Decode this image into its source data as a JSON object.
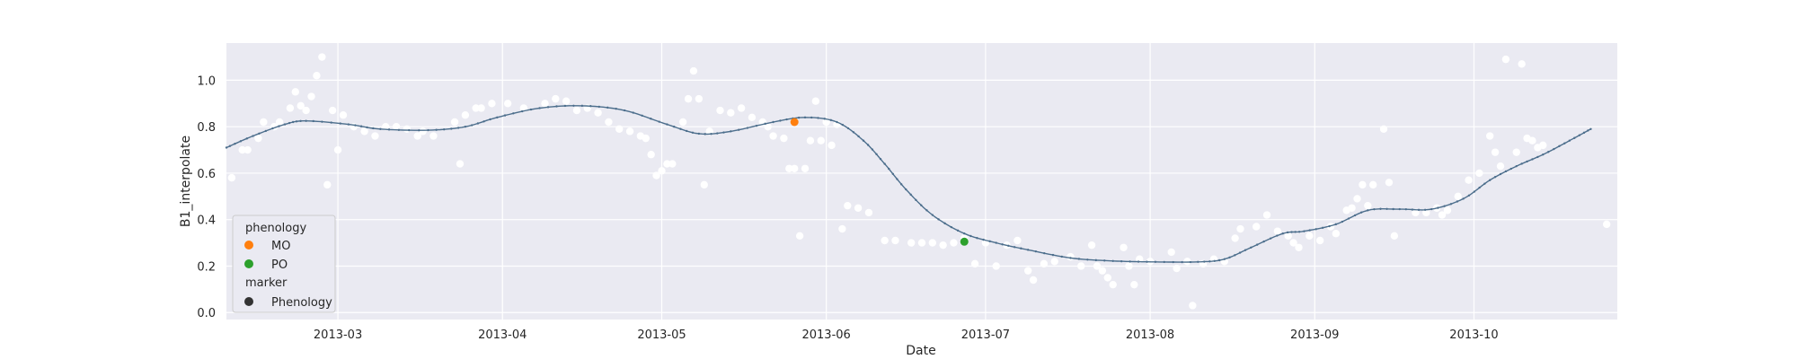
{
  "chart_data": {
    "type": "scatter",
    "title": "",
    "xlabel": "Date",
    "ylabel": "B1_interpolate",
    "x_ticks": [
      "2013-03",
      "2013-04",
      "2013-05",
      "2013-06",
      "2013-07",
      "2013-08",
      "2013-09",
      "2013-10"
    ],
    "x_tick_days": [
      28,
      59,
      89,
      120,
      150,
      181,
      212,
      242
    ],
    "x_range_days": [
      7,
      269
    ],
    "y_ticks": [
      "0.0",
      "0.2",
      "0.4",
      "0.6",
      "0.8",
      "1.0"
    ],
    "ylim": [
      -0.03,
      1.16
    ],
    "grid": true,
    "colors": {
      "background": "#eaeaf2",
      "grid": "#ffffff",
      "curve": "#4c6e8c",
      "raw_points": "#ffffff",
      "MO": "#ff7f0e",
      "PO": "#2ca02c",
      "marker": "#333333"
    },
    "curve": {
      "name": "B1_interpolate",
      "x_days": [
        7,
        12,
        18,
        22,
        30,
        36,
        45,
        52,
        58,
        66,
        74,
        82,
        90,
        96,
        102,
        110,
        116,
        122,
        127,
        131,
        135,
        140,
        146,
        152,
        158,
        166,
        174,
        182,
        190,
        195,
        200,
        206,
        210,
        216,
        222,
        228,
        234,
        240,
        245,
        250,
        255,
        260,
        264
      ],
      "values": [
        0.71,
        0.76,
        0.81,
        0.825,
        0.81,
        0.79,
        0.785,
        0.8,
        0.84,
        0.88,
        0.89,
        0.87,
        0.81,
        0.77,
        0.78,
        0.82,
        0.84,
        0.82,
        0.74,
        0.64,
        0.53,
        0.42,
        0.34,
        0.3,
        0.27,
        0.235,
        0.222,
        0.218,
        0.218,
        0.23,
        0.28,
        0.34,
        0.35,
        0.38,
        0.44,
        0.445,
        0.445,
        0.49,
        0.57,
        0.63,
        0.68,
        0.74,
        0.79
      ]
    },
    "raw_points": {
      "name": "raw observations",
      "points": [
        [
          8,
          0.58
        ],
        [
          10,
          0.7
        ],
        [
          11,
          0.7
        ],
        [
          13,
          0.75
        ],
        [
          14,
          0.82
        ],
        [
          16,
          0.8
        ],
        [
          17,
          0.82
        ],
        [
          19,
          0.88
        ],
        [
          20,
          0.95
        ],
        [
          21,
          0.89
        ],
        [
          22,
          0.87
        ],
        [
          23,
          0.93
        ],
        [
          24,
          1.02
        ],
        [
          25,
          1.1
        ],
        [
          26,
          0.55
        ],
        [
          27,
          0.87
        ],
        [
          28,
          0.7
        ],
        [
          29,
          0.85
        ],
        [
          31,
          0.8
        ],
        [
          33,
          0.78
        ],
        [
          35,
          0.76
        ],
        [
          37,
          0.8
        ],
        [
          39,
          0.8
        ],
        [
          41,
          0.79
        ],
        [
          43,
          0.76
        ],
        [
          44,
          0.78
        ],
        [
          46,
          0.76
        ],
        [
          50,
          0.82
        ],
        [
          51,
          0.64
        ],
        [
          52,
          0.85
        ],
        [
          54,
          0.88
        ],
        [
          55,
          0.88
        ],
        [
          57,
          0.9
        ],
        [
          60,
          0.9
        ],
        [
          63,
          0.88
        ],
        [
          67,
          0.9
        ],
        [
          69,
          0.92
        ],
        [
          71,
          0.91
        ],
        [
          73,
          0.87
        ],
        [
          75,
          0.88
        ],
        [
          77,
          0.86
        ],
        [
          79,
          0.82
        ],
        [
          81,
          0.79
        ],
        [
          83,
          0.78
        ],
        [
          85,
          0.76
        ],
        [
          86,
          0.75
        ],
        [
          87,
          0.68
        ],
        [
          88,
          0.59
        ],
        [
          89,
          0.61
        ],
        [
          90,
          0.64
        ],
        [
          91,
          0.64
        ],
        [
          93,
          0.82
        ],
        [
          94,
          0.92
        ],
        [
          95,
          1.04
        ],
        [
          96,
          0.92
        ],
        [
          97,
          0.55
        ],
        [
          98,
          0.78
        ],
        [
          100,
          0.87
        ],
        [
          102,
          0.86
        ],
        [
          104,
          0.88
        ],
        [
          106,
          0.84
        ],
        [
          108,
          0.82
        ],
        [
          109,
          0.8
        ],
        [
          110,
          0.76
        ],
        [
          112,
          0.75
        ],
        [
          113,
          0.62
        ],
        [
          114,
          0.62
        ],
        [
          115,
          0.33
        ],
        [
          116,
          0.62
        ],
        [
          117,
          0.74
        ],
        [
          118,
          0.91
        ],
        [
          119,
          0.74
        ],
        [
          120,
          0.82
        ],
        [
          121,
          0.72
        ],
        [
          122,
          0.81
        ],
        [
          123,
          0.36
        ],
        [
          124,
          0.46
        ],
        [
          126,
          0.45
        ],
        [
          128,
          0.43
        ],
        [
          131,
          0.31
        ],
        [
          133,
          0.31
        ],
        [
          136,
          0.3
        ],
        [
          138,
          0.3
        ],
        [
          140,
          0.3
        ],
        [
          142,
          0.29
        ],
        [
          144,
          0.3
        ],
        [
          146,
          0.32
        ],
        [
          148,
          0.21
        ],
        [
          150,
          0.3
        ],
        [
          152,
          0.2
        ],
        [
          154,
          0.29
        ],
        [
          156,
          0.31
        ],
        [
          158,
          0.18
        ],
        [
          159,
          0.14
        ],
        [
          161,
          0.21
        ],
        [
          163,
          0.22
        ],
        [
          166,
          0.24
        ],
        [
          168,
          0.2
        ],
        [
          170,
          0.29
        ],
        [
          171,
          0.2
        ],
        [
          172,
          0.18
        ],
        [
          173,
          0.15
        ],
        [
          174,
          0.12
        ],
        [
          176,
          0.28
        ],
        [
          177,
          0.2
        ],
        [
          178,
          0.12
        ],
        [
          179,
          0.23
        ],
        [
          181,
          0.22
        ],
        [
          185,
          0.26
        ],
        [
          186,
          0.19
        ],
        [
          188,
          0.22
        ],
        [
          189,
          0.03
        ],
        [
          191,
          0.21
        ],
        [
          193,
          0.23
        ],
        [
          195,
          0.22
        ],
        [
          197,
          0.32
        ],
        [
          198,
          0.36
        ],
        [
          201,
          0.37
        ],
        [
          203,
          0.42
        ],
        [
          205,
          0.35
        ],
        [
          207,
          0.33
        ],
        [
          208,
          0.3
        ],
        [
          209,
          0.28
        ],
        [
          211,
          0.33
        ],
        [
          213,
          0.31
        ],
        [
          215,
          0.37
        ],
        [
          216,
          0.34
        ],
        [
          218,
          0.44
        ],
        [
          219,
          0.45
        ],
        [
          220,
          0.49
        ],
        [
          221,
          0.55
        ],
        [
          222,
          0.46
        ],
        [
          223,
          0.55
        ],
        [
          225,
          0.79
        ],
        [
          226,
          0.56
        ],
        [
          227,
          0.33
        ],
        [
          231,
          0.43
        ],
        [
          233,
          0.43
        ],
        [
          235,
          0.45
        ],
        [
          236,
          0.42
        ],
        [
          237,
          0.44
        ],
        [
          239,
          0.5
        ],
        [
          241,
          0.57
        ],
        [
          243,
          0.6
        ],
        [
          245,
          0.76
        ],
        [
          246,
          0.69
        ],
        [
          247,
          0.63
        ],
        [
          248,
          1.09
        ],
        [
          250,
          0.69
        ],
        [
          251,
          1.07
        ],
        [
          252,
          0.75
        ],
        [
          253,
          0.74
        ],
        [
          254,
          0.71
        ],
        [
          255,
          0.72
        ],
        [
          267,
          0.38
        ]
      ]
    },
    "phenology_points": [
      {
        "label": "MO",
        "x_day": 114,
        "value": 0.82
      },
      {
        "label": "PO",
        "x_day": 146,
        "value": 0.305
      }
    ],
    "legend": {
      "position": "lower-left",
      "title": "phenology",
      "entries": [
        "MO",
        "PO"
      ],
      "marker_title": "marker",
      "marker_entry": "Phenology"
    }
  }
}
